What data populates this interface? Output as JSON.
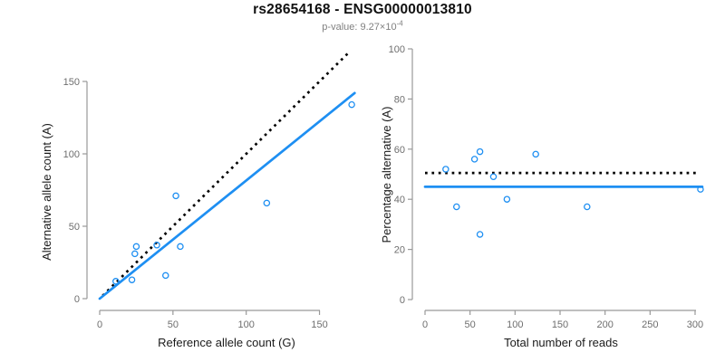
{
  "header": {
    "title": "rs28654168 - ENSG00000013810",
    "subtitle_prefix": "p-value: 9.27×10",
    "subtitle_exponent": "-4"
  },
  "colors": {
    "accent_blue": "#1E8FF2",
    "dotted_black": "#000000",
    "axis_line": "#999999",
    "tick_label": "#6E6E6E",
    "axis_label": "#1A1A1A"
  },
  "chart_data": [
    {
      "type": "scatter",
      "name": "allele-counts",
      "xlabel": "Reference allele count (G)",
      "ylabel": "Alternative allele count (A)",
      "xlim": [
        0,
        150
      ],
      "ylim": [
        0,
        150
      ],
      "xticks": [
        0,
        50,
        100,
        150
      ],
      "yticks": [
        0,
        50,
        100,
        150
      ],
      "grid": false,
      "points": [
        [
          11,
          12
        ],
        [
          22,
          13
        ],
        [
          24,
          31
        ],
        [
          25,
          36
        ],
        [
          39,
          37
        ],
        [
          45,
          16
        ],
        [
          52,
          71
        ],
        [
          55,
          36
        ],
        [
          114,
          66
        ],
        [
          172,
          134
        ]
      ],
      "lines": [
        {
          "name": "identity-line",
          "style": "dotted",
          "color_key": "dotted_black",
          "from": [
            2,
            2
          ],
          "to": [
            171,
            171
          ]
        },
        {
          "name": "regression-line",
          "style": "solid",
          "color_key": "accent_blue",
          "from": [
            0,
            0
          ],
          "to": [
            174,
            142
          ]
        }
      ]
    },
    {
      "type": "scatter",
      "name": "percentage-vs-reads",
      "xlabel": "Total number of reads",
      "ylabel": "Percentage alternative (A)",
      "xlim": [
        0,
        310
      ],
      "ylim": [
        0,
        100
      ],
      "xticks": [
        0,
        50,
        100,
        150,
        200,
        250,
        300
      ],
      "yticks": [
        0,
        20,
        40,
        60,
        80,
        100
      ],
      "grid": false,
      "points": [
        [
          23,
          52
        ],
        [
          35,
          37
        ],
        [
          55,
          56
        ],
        [
          61,
          59
        ],
        [
          61,
          26
        ],
        [
          76,
          49
        ],
        [
          91,
          40
        ],
        [
          123,
          58
        ],
        [
          180,
          37
        ],
        [
          306,
          44
        ]
      ],
      "lines": [
        {
          "name": "expected-percentage-line",
          "style": "dotted",
          "color_key": "dotted_black",
          "from": [
            0,
            50.5
          ],
          "to": [
            301,
            50.5
          ]
        },
        {
          "name": "fitted-percentage-line",
          "style": "solid",
          "color_key": "accent_blue",
          "from": [
            0,
            45
          ],
          "to": [
            308,
            45
          ]
        }
      ]
    }
  ]
}
